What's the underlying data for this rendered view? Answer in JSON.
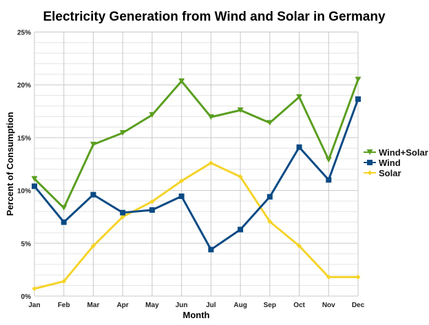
{
  "chart_data": {
    "type": "line",
    "title": "Electricity Generation from Wind and Solar in Germany",
    "xlabel": "Month",
    "ylabel": "Percent of Consumption",
    "categories": [
      "Jan",
      "Feb",
      "Mar",
      "Apr",
      "May",
      "Jun",
      "Jul",
      "Aug",
      "Sep",
      "Oct",
      "Nov",
      "Dec"
    ],
    "ylim": [
      0,
      25
    ],
    "yticks": [
      "0%",
      "5%",
      "10%",
      "15%",
      "20%",
      "25%"
    ],
    "grid": true,
    "legend": "right",
    "series": [
      {
        "name": "Wind+Solar",
        "color": "#5a9e1f",
        "marker": "triangle-down",
        "values": [
          11.1,
          8.35,
          14.35,
          15.45,
          17.15,
          20.35,
          16.95,
          17.6,
          16.4,
          18.85,
          12.9,
          20.5
        ]
      },
      {
        "name": "Wind",
        "color": "#0a4a84",
        "marker": "square",
        "values": [
          10.4,
          7.0,
          9.6,
          7.9,
          8.15,
          9.45,
          4.4,
          6.3,
          9.4,
          14.1,
          11.0,
          18.65
        ]
      },
      {
        "name": "Solar",
        "color": "#f5d327",
        "marker": "diamond",
        "values": [
          0.7,
          1.4,
          4.75,
          7.5,
          8.95,
          10.9,
          12.6,
          11.3,
          7.05,
          4.75,
          1.8,
          1.8
        ]
      }
    ]
  }
}
